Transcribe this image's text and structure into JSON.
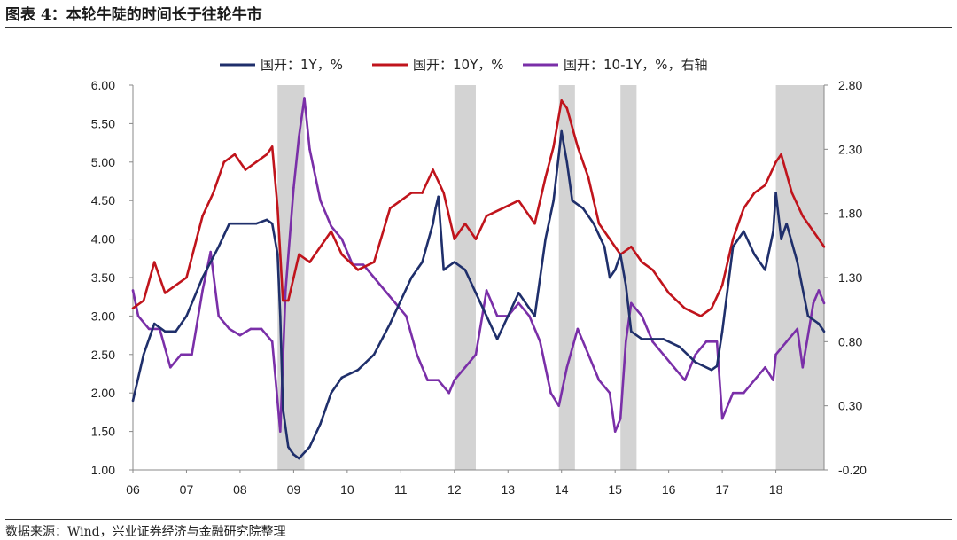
{
  "header": {
    "title": "图表 4：本轮牛陡的时间长于往轮牛市"
  },
  "footer": {
    "source": "数据来源：Wind，兴业证券经济与金融研究院整理"
  },
  "chart_data": {
    "type": "line",
    "title": "图表 4：本轮牛陡的时间长于往轮牛市",
    "categories": [
      "06",
      "07",
      "08",
      "09",
      "10",
      "11",
      "12",
      "13",
      "14",
      "15",
      "16",
      "17",
      "18"
    ],
    "x_range": [
      2006.0,
      2018.9
    ],
    "left_axis": {
      "ylim": [
        1.0,
        6.0
      ],
      "ticks": [
        "1.00",
        "1.50",
        "2.00",
        "2.50",
        "3.00",
        "3.50",
        "4.00",
        "4.50",
        "5.00",
        "5.50",
        "6.00"
      ]
    },
    "right_axis": {
      "ylim": [
        -0.2,
        2.8
      ],
      "ticks": [
        "-0.20",
        "0.30",
        "0.80",
        "1.30",
        "1.80",
        "2.30",
        "2.80"
      ]
    },
    "shaded_periods": [
      [
        2008.7,
        2009.2
      ],
      [
        2012.0,
        2012.4
      ],
      [
        2013.95,
        2014.25
      ],
      [
        2015.1,
        2015.4
      ],
      [
        2018.0,
        2018.9
      ]
    ],
    "colors": {
      "s1": "#1f2f6b",
      "s2": "#c0141c",
      "s3": "#7a2fa8",
      "shade": "#d3d3d3"
    },
    "series": [
      {
        "name": "国开：1Y，%",
        "axis": "left",
        "x": [
          2006.0,
          2006.2,
          2006.4,
          2006.6,
          2006.8,
          2007.0,
          2007.3,
          2007.6,
          2007.8,
          2008.0,
          2008.3,
          2008.5,
          2008.6,
          2008.7,
          2008.75,
          2008.8,
          2008.9,
          2009.0,
          2009.1,
          2009.3,
          2009.5,
          2009.7,
          2009.9,
          2010.2,
          2010.5,
          2010.8,
          2011.0,
          2011.2,
          2011.4,
          2011.6,
          2011.65,
          2011.7,
          2011.8,
          2012.0,
          2012.2,
          2012.4,
          2012.6,
          2012.8,
          2013.0,
          2013.2,
          2013.5,
          2013.7,
          2013.85,
          2014.0,
          2014.1,
          2014.2,
          2014.4,
          2014.6,
          2014.8,
          2014.9,
          2015.0,
          2015.1,
          2015.2,
          2015.3,
          2015.5,
          2015.7,
          2015.9,
          2016.2,
          2016.5,
          2016.8,
          2016.9,
          2017.0,
          2017.2,
          2017.4,
          2017.6,
          2017.8,
          2017.95,
          2018.0,
          2018.1,
          2018.2,
          2018.4,
          2018.6,
          2018.8,
          2018.9
        ],
        "values": [
          1.9,
          2.5,
          2.9,
          2.8,
          2.8,
          3.0,
          3.5,
          3.9,
          4.2,
          4.2,
          4.2,
          4.25,
          4.2,
          3.8,
          3.0,
          1.8,
          1.3,
          1.2,
          1.15,
          1.3,
          1.6,
          2.0,
          2.2,
          2.3,
          2.5,
          2.9,
          3.2,
          3.5,
          3.7,
          4.2,
          4.4,
          4.55,
          3.6,
          3.7,
          3.6,
          3.3,
          3.0,
          2.7,
          3.0,
          3.3,
          3.0,
          4.0,
          4.5,
          5.4,
          5.0,
          4.5,
          4.4,
          4.2,
          3.9,
          3.5,
          3.6,
          3.8,
          3.4,
          2.8,
          2.7,
          2.7,
          2.7,
          2.6,
          2.4,
          2.3,
          2.35,
          2.8,
          3.9,
          4.1,
          3.8,
          3.6,
          4.1,
          4.6,
          4.0,
          4.2,
          3.7,
          3.0,
          2.9,
          2.8
        ]
      },
      {
        "name": "国开：10Y，%",
        "axis": "left",
        "x": [
          2006.0,
          2006.2,
          2006.4,
          2006.6,
          2006.8,
          2007.0,
          2007.3,
          2007.5,
          2007.7,
          2007.9,
          2008.1,
          2008.3,
          2008.5,
          2008.6,
          2008.7,
          2008.8,
          2008.9,
          2009.0,
          2009.1,
          2009.3,
          2009.5,
          2009.7,
          2009.9,
          2010.2,
          2010.5,
          2010.8,
          2011.0,
          2011.2,
          2011.4,
          2011.6,
          2011.8,
          2012.0,
          2012.2,
          2012.4,
          2012.6,
          2012.9,
          2013.2,
          2013.5,
          2013.7,
          2013.85,
          2014.0,
          2014.1,
          2014.3,
          2014.5,
          2014.7,
          2014.9,
          2015.1,
          2015.3,
          2015.5,
          2015.7,
          2016.0,
          2016.3,
          2016.6,
          2016.8,
          2017.0,
          2017.2,
          2017.4,
          2017.6,
          2017.8,
          2018.0,
          2018.1,
          2018.3,
          2018.5,
          2018.7,
          2018.9
        ],
        "values": [
          3.1,
          3.2,
          3.7,
          3.3,
          3.4,
          3.5,
          4.3,
          4.6,
          5.0,
          5.1,
          4.9,
          5.0,
          5.1,
          5.2,
          4.4,
          3.2,
          3.2,
          3.5,
          3.8,
          3.7,
          3.9,
          4.1,
          3.8,
          3.6,
          3.7,
          4.4,
          4.5,
          4.6,
          4.6,
          4.9,
          4.6,
          4.0,
          4.2,
          4.0,
          4.3,
          4.4,
          4.5,
          4.2,
          4.8,
          5.2,
          5.8,
          5.7,
          5.2,
          4.8,
          4.2,
          4.0,
          3.8,
          3.9,
          3.7,
          3.6,
          3.3,
          3.1,
          3.0,
          3.1,
          3.4,
          4.0,
          4.4,
          4.6,
          4.7,
          5.0,
          5.1,
          4.6,
          4.3,
          4.1,
          3.9
        ]
      },
      {
        "name": "国开：10-1Y，%，右轴",
        "axis": "right",
        "x": [
          2006.0,
          2006.1,
          2006.3,
          2006.5,
          2006.7,
          2006.9,
          2007.1,
          2007.3,
          2007.45,
          2007.6,
          2007.8,
          2008.0,
          2008.2,
          2008.4,
          2008.6,
          2008.75,
          2008.85,
          2009.0,
          2009.1,
          2009.2,
          2009.3,
          2009.5,
          2009.7,
          2009.9,
          2010.1,
          2010.3,
          2010.5,
          2010.7,
          2010.9,
          2011.1,
          2011.3,
          2011.5,
          2011.7,
          2011.9,
          2012.0,
          2012.2,
          2012.4,
          2012.6,
          2012.8,
          2013.0,
          2013.2,
          2013.4,
          2013.6,
          2013.8,
          2013.95,
          2014.1,
          2014.3,
          2014.5,
          2014.7,
          2014.9,
          2015.0,
          2015.1,
          2015.2,
          2015.3,
          2015.5,
          2015.7,
          2015.9,
          2016.1,
          2016.3,
          2016.5,
          2016.7,
          2016.9,
          2017.0,
          2017.2,
          2017.4,
          2017.6,
          2017.8,
          2017.95,
          2018.0,
          2018.2,
          2018.4,
          2018.5,
          2018.7,
          2018.8,
          2018.9
        ],
        "values": [
          1.2,
          1.0,
          0.9,
          0.9,
          0.6,
          0.7,
          0.7,
          1.2,
          1.5,
          1.0,
          0.9,
          0.85,
          0.9,
          0.9,
          0.8,
          0.1,
          1.2,
          2.0,
          2.4,
          2.7,
          2.3,
          1.9,
          1.7,
          1.6,
          1.4,
          1.4,
          1.3,
          1.2,
          1.1,
          1.0,
          0.7,
          0.5,
          0.5,
          0.4,
          0.5,
          0.6,
          0.7,
          1.2,
          1.0,
          1.0,
          1.1,
          1.0,
          0.8,
          0.4,
          0.3,
          0.6,
          0.9,
          0.7,
          0.5,
          0.4,
          0.1,
          0.2,
          0.8,
          1.1,
          1.0,
          0.8,
          0.7,
          0.6,
          0.5,
          0.7,
          0.8,
          0.8,
          0.2,
          0.4,
          0.4,
          0.5,
          0.6,
          0.5,
          0.7,
          0.8,
          0.9,
          0.6,
          1.1,
          1.2,
          1.1
        ]
      }
    ]
  }
}
